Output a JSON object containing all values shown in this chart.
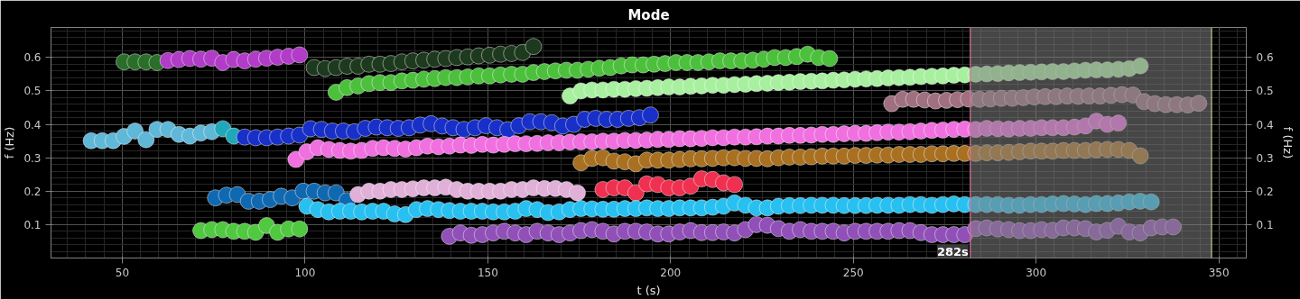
{
  "chart_data": {
    "type": "scatter",
    "title": "Mode",
    "xlabel": "t (s)",
    "ylabel": "f (Hz)",
    "y2label": "f (Hz)",
    "xlim": [
      30.5,
      357.5
    ],
    "xticks": [
      50,
      100,
      150,
      200,
      250,
      300,
      350
    ],
    "ylim": [
      0,
      0.69
    ],
    "yticks": [
      0.1,
      0.2,
      0.3,
      0.4,
      0.5,
      0.6
    ],
    "y2lim": [
      0,
      0.69
    ],
    "y2ticks": [
      0.1,
      0.2,
      0.3,
      0.4,
      0.5,
      0.6
    ],
    "grid": true,
    "marker": "circle",
    "ref_lines": [
      {
        "axis": "x",
        "value": 282,
        "label": "282s",
        "color": "#e070a0"
      },
      {
        "axis": "x",
        "value": 348,
        "label": null,
        "color": "#c8c890"
      }
    ],
    "bands": [
      {
        "axis": "x",
        "from": 282,
        "to": 348,
        "label": null,
        "color": "#808080"
      }
    ],
    "series": [
      {
        "color": "#2a6e2a",
        "x": [
          50.5,
          53.5,
          56.5,
          59.5
        ],
        "values": [
          0.587,
          0.587,
          0.587,
          0.585
        ]
      },
      {
        "color": "#b03cc8",
        "x": [
          62.5,
          65.5,
          68.5,
          71.5,
          74.5,
          77.5,
          80.5,
          83.5,
          86.5,
          89.5,
          92.5,
          95.5,
          98.5
        ],
        "values": [
          0.591,
          0.594,
          0.597,
          0.595,
          0.598,
          0.585,
          0.594,
          0.59,
          0.595,
          0.598,
          0.601,
          0.604,
          0.608
        ]
      },
      {
        "color": "#1e3a1e",
        "x": [
          102.5,
          105.5,
          108.5,
          111.5,
          114.5,
          117.5,
          120.5,
          123.5,
          126.5,
          129.5,
          132.5,
          135.5,
          138.5,
          141.5,
          144.5,
          147.5,
          150.5,
          153.5,
          156.5,
          159.5,
          162.5
        ],
        "values": [
          0.57,
          0.567,
          0.57,
          0.574,
          0.574,
          0.58,
          0.58,
          0.582,
          0.587,
          0.59,
          0.592,
          0.595,
          0.597,
          0.6,
          0.602,
          0.605,
          0.607,
          0.61,
          0.612,
          0.615,
          0.633
        ]
      },
      {
        "color": "#4cc03c",
        "x": [
          108.5,
          111.5,
          114.5,
          117.5,
          120.5,
          123.5,
          126.5,
          129.5,
          132.5,
          135.5,
          138.5,
          141.5,
          144.5,
          147.5,
          150.5,
          153.5,
          156.5,
          159.5,
          162.5,
          165.5,
          168.5,
          171.5,
          174.5,
          177.5,
          180.5,
          183.5,
          186.5,
          189.5,
          192.5,
          195.5,
          198.5,
          201.5,
          204.5,
          207.5,
          210.5,
          213.5,
          216.5,
          219.5,
          222.5,
          225.5,
          228.5,
          231.5,
          234.5,
          237.5,
          240.5,
          243.5
        ],
        "values": [
          0.496,
          0.51,
          0.515,
          0.522,
          0.525,
          0.525,
          0.53,
          0.532,
          0.535,
          0.537,
          0.54,
          0.54,
          0.542,
          0.545,
          0.545,
          0.548,
          0.55,
          0.55,
          0.555,
          0.558,
          0.56,
          0.562,
          0.562,
          0.565,
          0.568,
          0.57,
          0.575,
          0.578,
          0.578,
          0.58,
          0.582,
          0.585,
          0.585,
          0.585,
          0.587,
          0.59,
          0.59,
          0.59,
          0.592,
          0.595,
          0.6,
          0.6,
          0.603,
          0.61,
          0.6,
          0.597
        ]
      },
      {
        "color": "#a8f0a0",
        "x": [
          172.5,
          175.5,
          178.5,
          181.5,
          184.5,
          187.5,
          190.5,
          193.5,
          196.5,
          199.5,
          202.5,
          205.5,
          208.5,
          211.5,
          214.5,
          217.5,
          220.5,
          223.5,
          226.5,
          229.5,
          232.5,
          235.5,
          238.5,
          241.5,
          244.5,
          247.5,
          250.5,
          253.5,
          256.5,
          259.5,
          262.5,
          265.5,
          268.5,
          271.5,
          274.5,
          277.5,
          280.5,
          283.5,
          286.5,
          289.5,
          292.5,
          295.5,
          298.5,
          301.5,
          304.5,
          307.5,
          310.5,
          313.5,
          316.5,
          319.5,
          322.5,
          325.5,
          328.5
        ],
        "values": [
          0.485,
          0.5,
          0.503,
          0.503,
          0.505,
          0.505,
          0.507,
          0.508,
          0.51,
          0.512,
          0.512,
          0.514,
          0.515,
          0.517,
          0.517,
          0.519,
          0.52,
          0.522,
          0.523,
          0.525,
          0.526,
          0.528,
          0.529,
          0.53,
          0.532,
          0.533,
          0.535,
          0.536,
          0.537,
          0.539,
          0.54,
          0.541,
          0.543,
          0.544,
          0.545,
          0.547,
          0.548,
          0.55,
          0.551,
          0.552,
          0.554,
          0.555,
          0.556,
          0.557,
          0.558,
          0.558,
          0.56,
          0.562,
          0.563,
          0.563,
          0.565,
          0.567,
          0.575
        ]
      },
      {
        "color": "#a07080",
        "x": [
          260.5,
          263.5,
          266.5,
          269.5,
          272.5,
          275.5,
          278.5,
          281.5,
          284.5,
          287.5,
          290.5,
          293.5,
          296.5,
          299.5,
          302.5,
          305.5,
          308.5,
          311.5,
          314.5,
          317.5,
          320.5,
          323.5,
          326.5,
          329.5,
          332.5,
          335.5,
          338.5,
          341.5,
          344.5
        ],
        "values": [
          0.462,
          0.475,
          0.475,
          0.473,
          0.47,
          0.472,
          0.474,
          0.476,
          0.475,
          0.476,
          0.478,
          0.478,
          0.48,
          0.482,
          0.483,
          0.483,
          0.485,
          0.484,
          0.485,
          0.485,
          0.487,
          0.489,
          0.488,
          0.468,
          0.462,
          0.459,
          0.459,
          0.458,
          0.463
        ]
      },
      {
        "color": "#60b8d8",
        "x": [
          41.5,
          44.5,
          47.5,
          50.5,
          53.5,
          56.5,
          59.5,
          62.5,
          65.5,
          68.5,
          71.5,
          74.5
        ],
        "values": [
          0.351,
          0.351,
          0.351,
          0.364,
          0.38,
          0.354,
          0.385,
          0.385,
          0.37,
          0.365,
          0.374,
          0.378
        ]
      },
      {
        "color": "#20a8b8",
        "x": [
          77.5,
          80.5
        ],
        "values": [
          0.387,
          0.365
        ]
      },
      {
        "color": "#1830c8",
        "x": [
          83.5,
          86.5,
          89.5,
          92.5,
          95.5,
          98.5,
          101.5,
          104.5,
          107.5,
          110.5,
          113.5,
          116.5,
          119.5,
          122.5,
          125.5,
          128.5,
          131.5,
          134.5,
          137.5,
          140.5,
          143.5,
          146.5,
          149.5,
          152.5,
          155.5,
          158.5,
          161.5,
          164.5,
          167.5,
          170.5,
          173.5,
          176.5,
          179.5,
          182.5,
          185.5,
          188.5,
          191.5,
          194.5
        ],
        "values": [
          0.362,
          0.36,
          0.36,
          0.362,
          0.365,
          0.368,
          0.387,
          0.385,
          0.38,
          0.38,
          0.378,
          0.388,
          0.392,
          0.39,
          0.388,
          0.39,
          0.398,
          0.402,
          0.395,
          0.39,
          0.385,
          0.39,
          0.396,
          0.39,
          0.384,
          0.396,
          0.408,
          0.408,
          0.405,
          0.395,
          0.4,
          0.415,
          0.418,
          0.415,
          0.415,
          0.418,
          0.42,
          0.428
        ]
      },
      {
        "color": "#f070e0",
        "x": [
          97.5,
          100.5,
          103.5,
          106.5,
          109.5,
          112.5,
          115.5,
          118.5,
          121.5,
          124.5,
          127.5,
          130.5,
          133.5,
          136.5,
          139.5,
          142.5,
          145.5,
          148.5,
          151.5,
          154.5,
          157.5,
          160.5,
          163.5,
          166.5,
          169.5,
          172.5,
          175.5,
          178.5,
          181.5,
          184.5,
          187.5,
          190.5,
          193.5,
          196.5,
          199.5,
          202.5,
          205.5,
          208.5,
          211.5,
          214.5,
          217.5,
          220.5,
          223.5,
          226.5,
          229.5,
          232.5,
          235.5,
          238.5,
          241.5,
          244.5,
          247.5,
          250.5,
          253.5,
          256.5,
          259.5,
          262.5,
          265.5,
          268.5,
          271.5,
          274.5,
          277.5,
          280.5,
          283.5,
          286.5,
          289.5,
          292.5,
          295.5,
          298.5,
          301.5,
          304.5,
          307.5,
          310.5,
          313.5,
          316.5,
          319.5,
          322.5
        ],
        "values": [
          0.295,
          0.318,
          0.33,
          0.325,
          0.322,
          0.32,
          0.322,
          0.328,
          0.33,
          0.328,
          0.326,
          0.33,
          0.335,
          0.333,
          0.335,
          0.338,
          0.337,
          0.34,
          0.338,
          0.34,
          0.342,
          0.342,
          0.343,
          0.345,
          0.345,
          0.347,
          0.348,
          0.348,
          0.35,
          0.35,
          0.352,
          0.352,
          0.353,
          0.355,
          0.355,
          0.357,
          0.357,
          0.358,
          0.36,
          0.36,
          0.362,
          0.362,
          0.363,
          0.365,
          0.365,
          0.367,
          0.367,
          0.368,
          0.37,
          0.37,
          0.372,
          0.373,
          0.373,
          0.375,
          0.377,
          0.377,
          0.378,
          0.38,
          0.382,
          0.383,
          0.385,
          0.386,
          0.385,
          0.388,
          0.387,
          0.386,
          0.388,
          0.388,
          0.39,
          0.39,
          0.39,
          0.392,
          0.395,
          0.41,
          0.4,
          0.404
        ]
      },
      {
        "color": "#a87020",
        "x": [
          175.5,
          178.5,
          181.5,
          184.5,
          187.5,
          190.5,
          193.5,
          196.5,
          199.5,
          202.5,
          205.5,
          208.5,
          211.5,
          214.5,
          217.5,
          220.5,
          223.5,
          226.5,
          229.5,
          232.5,
          235.5,
          238.5,
          241.5,
          244.5,
          247.5,
          250.5,
          253.5,
          256.5,
          259.5,
          262.5,
          265.5,
          268.5,
          271.5,
          274.5,
          277.5,
          280.5,
          283.5,
          286.5,
          289.5,
          292.5,
          295.5,
          298.5,
          301.5,
          304.5,
          307.5,
          310.5,
          313.5,
          316.5,
          319.5,
          322.5,
          325.5,
          328.5
        ],
        "values": [
          0.285,
          0.298,
          0.3,
          0.29,
          0.288,
          0.282,
          0.293,
          0.293,
          0.293,
          0.295,
          0.297,
          0.297,
          0.298,
          0.3,
          0.3,
          0.298,
          0.298,
          0.297,
          0.3,
          0.302,
          0.302,
          0.303,
          0.305,
          0.305,
          0.305,
          0.307,
          0.307,
          0.308,
          0.308,
          0.31,
          0.31,
          0.31,
          0.312,
          0.312,
          0.313,
          0.313,
          0.313,
          0.315,
          0.315,
          0.316,
          0.318,
          0.32,
          0.32,
          0.32,
          0.322,
          0.322,
          0.322,
          0.324,
          0.325,
          0.325,
          0.322,
          0.306
        ]
      },
      {
        "color": "#f03050",
        "x": [
          181.5,
          184.5,
          187.5,
          190.5,
          193.5,
          196.5,
          199.5,
          202.5,
          205.5,
          208.5,
          211.5,
          214.5,
          217.5
        ],
        "values": [
          0.205,
          0.21,
          0.21,
          0.195,
          0.222,
          0.22,
          0.21,
          0.21,
          0.215,
          0.237,
          0.235,
          0.225,
          0.22
        ]
      },
      {
        "color": "#1068b0",
        "x": [
          75.5,
          78.5,
          81.5,
          84.5,
          87.5,
          90.5,
          93.5,
          96.5,
          99.5,
          102.5,
          105.5,
          108.5,
          111.5
        ],
        "values": [
          0.18,
          0.188,
          0.19,
          0.17,
          0.17,
          0.175,
          0.185,
          0.18,
          0.2,
          0.2,
          0.195,
          0.195,
          0.172
        ]
      },
      {
        "color": "#e0b0d8",
        "x": [
          114.5,
          117.5,
          120.5,
          123.5,
          126.5,
          129.5,
          132.5,
          135.5,
          138.5,
          141.5,
          144.5,
          147.5,
          150.5,
          153.5,
          156.5,
          159.5,
          162.5,
          165.5,
          168.5,
          171.5,
          174.5
        ],
        "values": [
          0.19,
          0.2,
          0.2,
          0.205,
          0.205,
          0.207,
          0.21,
          0.21,
          0.212,
          0.205,
          0.2,
          0.2,
          0.2,
          0.2,
          0.205,
          0.205,
          0.21,
          0.208,
          0.208,
          0.205,
          0.195
        ]
      },
      {
        "color": "#28c0f0",
        "x": [
          100.5,
          103.5,
          106.5,
          109.5,
          112.5,
          115.5,
          118.5,
          121.5,
          124.5,
          127.5,
          130.5,
          133.5,
          136.5,
          139.5,
          142.5,
          145.5,
          148.5,
          151.5,
          154.5,
          157.5,
          160.5,
          163.5,
          166.5,
          169.5,
          172.5,
          175.5,
          178.5,
          181.5,
          184.5,
          187.5,
          190.5,
          193.5,
          196.5,
          199.5,
          202.5,
          205.5,
          208.5,
          211.5,
          214.5,
          217.5,
          220.5,
          223.5,
          226.5,
          229.5,
          232.5,
          235.5,
          238.5,
          241.5,
          244.5,
          247.5,
          250.5,
          253.5,
          256.5,
          259.5,
          262.5,
          265.5,
          268.5,
          271.5,
          274.5,
          277.5,
          280.5,
          283.5,
          286.5,
          289.5,
          292.5,
          295.5,
          298.5,
          301.5,
          304.5,
          307.5,
          310.5,
          313.5,
          316.5,
          319.5,
          322.5,
          325.5,
          328.5,
          331.5
        ],
        "values": [
          0.155,
          0.145,
          0.138,
          0.14,
          0.14,
          0.138,
          0.14,
          0.14,
          0.132,
          0.13,
          0.145,
          0.148,
          0.145,
          0.142,
          0.14,
          0.14,
          0.14,
          0.138,
          0.138,
          0.14,
          0.148,
          0.145,
          0.136,
          0.138,
          0.145,
          0.148,
          0.147,
          0.146,
          0.146,
          0.148,
          0.148,
          0.15,
          0.148,
          0.148,
          0.15,
          0.15,
          0.15,
          0.152,
          0.155,
          0.165,
          0.158,
          0.15,
          0.15,
          0.155,
          0.157,
          0.157,
          0.158,
          0.158,
          0.158,
          0.157,
          0.157,
          0.157,
          0.158,
          0.158,
          0.158,
          0.16,
          0.16,
          0.158,
          0.16,
          0.162,
          0.16,
          0.16,
          0.16,
          0.16,
          0.158,
          0.158,
          0.16,
          0.16,
          0.162,
          0.163,
          0.162,
          0.16,
          0.163,
          0.163,
          0.165,
          0.168,
          0.17,
          0.168
        ]
      },
      {
        "color": "#50c840",
        "x": [
          71.5,
          74.5,
          77.5,
          80.5,
          83.5,
          86.5,
          89.5,
          92.5,
          95.5,
          98.5
        ],
        "values": [
          0.082,
          0.085,
          0.085,
          0.08,
          0.08,
          0.077,
          0.097,
          0.077,
          0.087,
          0.087
        ]
      },
      {
        "color": "#9050b8",
        "x": [
          139.5,
          142.5,
          145.5,
          148.5,
          151.5,
          154.5,
          157.5,
          160.5,
          163.5,
          166.5,
          169.5,
          172.5,
          175.5,
          178.5,
          181.5,
          184.5,
          187.5,
          190.5,
          193.5,
          196.5,
          199.5,
          202.5,
          205.5,
          208.5,
          211.5,
          214.5,
          217.5,
          220.5,
          223.5,
          226.5,
          229.5,
          232.5,
          235.5,
          238.5,
          241.5,
          244.5,
          247.5,
          250.5,
          253.5,
          256.5,
          259.5,
          262.5,
          265.5,
          268.5,
          271.5,
          274.5,
          277.5,
          280.5,
          283.5,
          286.5,
          289.5,
          292.5,
          295.5,
          298.5,
          301.5,
          304.5,
          307.5,
          310.5,
          313.5,
          316.5,
          319.5,
          322.5,
          325.5,
          328.5,
          331.5,
          334.5,
          337.5
        ],
        "values": [
          0.065,
          0.075,
          0.068,
          0.07,
          0.075,
          0.08,
          0.075,
          0.07,
          0.08,
          0.075,
          0.07,
          0.075,
          0.082,
          0.085,
          0.08,
          0.072,
          0.08,
          0.08,
          0.078,
          0.072,
          0.072,
          0.078,
          0.082,
          0.076,
          0.076,
          0.078,
          0.075,
          0.085,
          0.1,
          0.098,
          0.088,
          0.08,
          0.085,
          0.08,
          0.08,
          0.08,
          0.075,
          0.08,
          0.08,
          0.08,
          0.08,
          0.082,
          0.082,
          0.076,
          0.07,
          0.07,
          0.07,
          0.07,
          0.088,
          0.09,
          0.087,
          0.085,
          0.082,
          0.082,
          0.085,
          0.083,
          0.09,
          0.09,
          0.088,
          0.078,
          0.083,
          0.095,
          0.078,
          0.075,
          0.09,
          0.093,
          0.093
        ]
      }
    ]
  }
}
